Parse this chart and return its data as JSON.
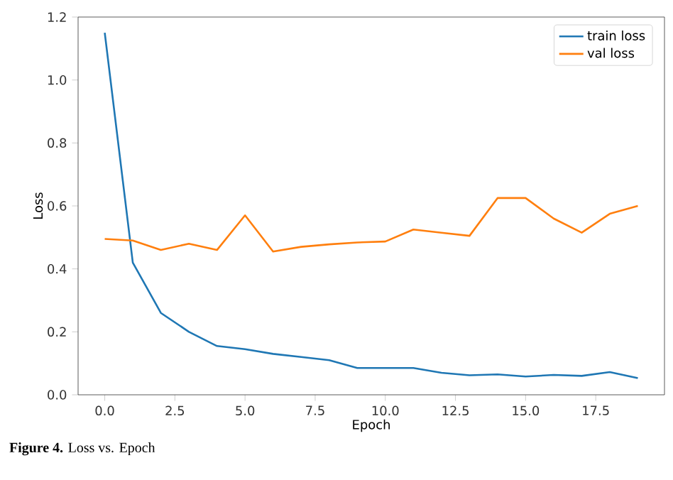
{
  "chart_data": {
    "type": "line",
    "xlabel": "Epoch",
    "ylabel": "Loss",
    "x": [
      0,
      1,
      2,
      3,
      4,
      5,
      6,
      7,
      8,
      9,
      10,
      11,
      12,
      13,
      14,
      15,
      16,
      17,
      18,
      19
    ],
    "series": [
      {
        "name": "train loss",
        "color": "#1f77b4",
        "values": [
          1.15,
          0.42,
          0.26,
          0.2,
          0.155,
          0.145,
          0.13,
          0.12,
          0.11,
          0.085,
          0.085,
          0.085,
          0.07,
          0.062,
          0.065,
          0.058,
          0.063,
          0.06,
          0.072,
          0.053
        ]
      },
      {
        "name": "val loss",
        "color": "#ff7f0e",
        "values": [
          0.495,
          0.49,
          0.46,
          0.48,
          0.46,
          0.57,
          0.455,
          0.47,
          0.478,
          0.484,
          0.487,
          0.525,
          0.515,
          0.505,
          0.625,
          0.625,
          0.56,
          0.515,
          0.575,
          0.6
        ]
      }
    ],
    "xlim": [
      -0.95,
      19.95
    ],
    "ylim": [
      0,
      1.2
    ],
    "xticks": [
      {
        "value": 0,
        "label": "0.0"
      },
      {
        "value": 2.5,
        "label": "2.5"
      },
      {
        "value": 5,
        "label": "5.0"
      },
      {
        "value": 7.5,
        "label": "7.5"
      },
      {
        "value": 10,
        "label": "10.0"
      },
      {
        "value": 12.5,
        "label": "12.5"
      },
      {
        "value": 15,
        "label": "15.0"
      },
      {
        "value": 17.5,
        "label": "17.5"
      }
    ],
    "yticks": [
      {
        "value": 0,
        "label": "0.0"
      },
      {
        "value": 0.2,
        "label": "0.2"
      },
      {
        "value": 0.4,
        "label": "0.4"
      },
      {
        "value": 0.6,
        "label": "0.6"
      },
      {
        "value": 0.8,
        "label": "0.8"
      },
      {
        "value": 1.0,
        "label": "1.0"
      },
      {
        "value": 1.2,
        "label": "1.2"
      }
    ],
    "legend": "top right",
    "grid": false,
    "marker": "none",
    "line_style": "solid",
    "annotations": [
      "**Figure 4.** Loss vs. Epoch"
    ]
  }
}
